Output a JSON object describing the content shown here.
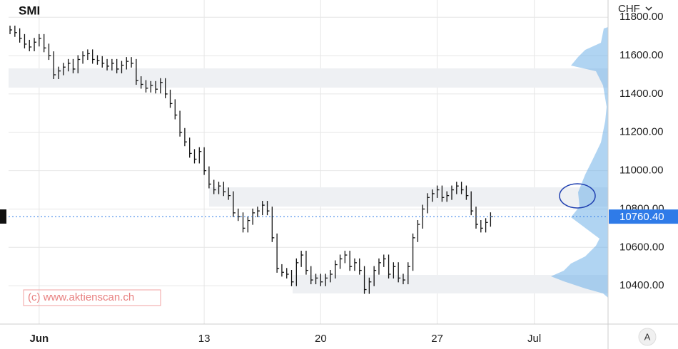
{
  "chart_data": {
    "type": "price-bars",
    "title": "SMI",
    "currency": "CHF",
    "watermark": "(c) www.aktienscan.ch",
    "scale_button": "A",
    "x": [
      0,
      1,
      2,
      3,
      4,
      5,
      6,
      7,
      8,
      9,
      10,
      11,
      12,
      13,
      14,
      15,
      16,
      17,
      18,
      19,
      20,
      21,
      22,
      23,
      24,
      25,
      26,
      27,
      28,
      29,
      30,
      31,
      32,
      33,
      34,
      35,
      36,
      37,
      38,
      39,
      40,
      41,
      42,
      43,
      44,
      45,
      46,
      47,
      48,
      49,
      50,
      51,
      52,
      53,
      54,
      55,
      56,
      57,
      58,
      59,
      60,
      61,
      62,
      63,
      64,
      65,
      66,
      67,
      68,
      69,
      70,
      71,
      72,
      73,
      74,
      75,
      76,
      77,
      78,
      79,
      80,
      81,
      82,
      83,
      84,
      85,
      86,
      87,
      88,
      89,
      90,
      91,
      92,
      93,
      94,
      95,
      96,
      97,
      98,
      99
    ],
    "values": [
      11734,
      11720,
      11690,
      11660,
      11645,
      11670,
      11690,
      11640,
      11600,
      11500,
      11520,
      11540,
      11560,
      11530,
      11580,
      11600,
      11610,
      11580,
      11575,
      11560,
      11545,
      11560,
      11530,
      11550,
      11570,
      11560,
      11470,
      11450,
      11430,
      11445,
      11425,
      11460,
      11400,
      11350,
      11290,
      11200,
      11150,
      11090,
      11060,
      11100,
      11000,
      10930,
      10900,
      10920,
      10890,
      10870,
      10780,
      10760,
      10700,
      10740,
      10780,
      10790,
      10820,
      10790,
      10650,
      10490,
      10470,
      10460,
      10420,
      10520,
      10560,
      10480,
      10430,
      10440,
      10420,
      10440,
      10460,
      10510,
      10540,
      10560,
      10500,
      10520,
      10480,
      10380,
      10420,
      10480,
      10520,
      10540,
      10460,
      10500,
      10440,
      10430,
      10500,
      10650,
      10720,
      10800,
      10860,
      10880,
      10900,
      10860,
      10870,
      10900,
      10920,
      10900,
      10870,
      10790,
      10720,
      10700,
      10730,
      10760.4
    ],
    "color": "#111111",
    "last_price": {
      "value": 10760.4,
      "label": "10760.40"
    },
    "last_price_color": "#2f7be8",
    "xlim": [
      -0.3,
      123.2
    ],
    "xticks": [
      {
        "value": 6,
        "label": "Jun"
      },
      {
        "value": 40,
        "label": "13"
      },
      {
        "value": 64,
        "label": "20"
      },
      {
        "value": 88,
        "label": "27"
      },
      {
        "value": 108,
        "label": "Jul"
      }
    ],
    "ylim": [
      10200,
      11890
    ],
    "yticks": [
      {
        "value": 10400,
        "label": "10400.00"
      },
      {
        "value": 10600,
        "label": "10600.00"
      },
      {
        "value": 10800,
        "label": "10800.00"
      },
      {
        "value": 11000,
        "label": "11000.00"
      },
      {
        "value": 11200,
        "label": "11200.00"
      },
      {
        "value": 11400,
        "label": "11400.00"
      },
      {
        "value": 11600,
        "label": "11600.00"
      },
      {
        "value": 11800,
        "label": "11800.00"
      }
    ],
    "grid": true
  }
}
